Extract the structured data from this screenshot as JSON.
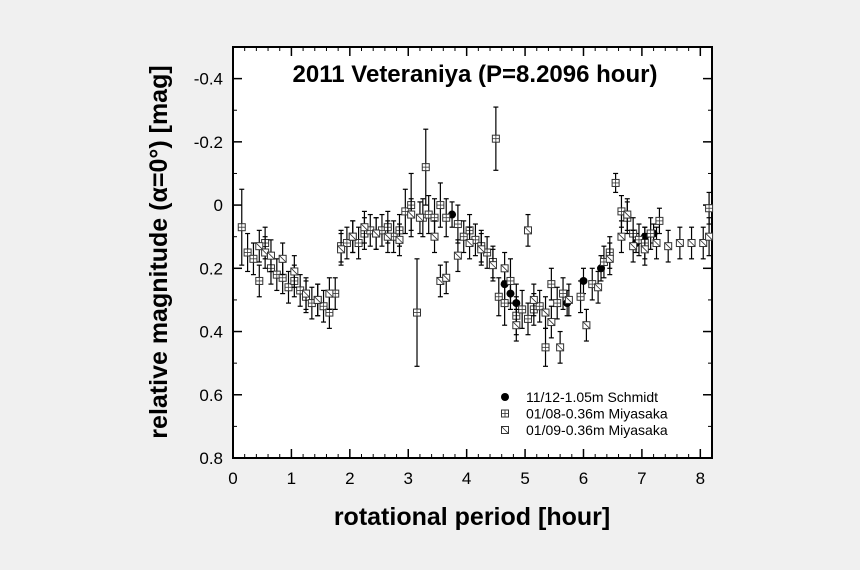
{
  "chart_data": {
    "type": "scatter",
    "title": "2011 Veteraniya  (P=8.2096 hour)",
    "xlabel": "rotational period [hour]",
    "ylabel": "relative magnitude (α=0°) [mag]",
    "xlim": [
      0,
      8.2
    ],
    "ylim": [
      0.8,
      -0.5
    ],
    "y_inverted": true,
    "xticks": [
      0,
      1,
      2,
      3,
      4,
      5,
      6,
      7,
      8
    ],
    "yticks": [
      -0.4,
      -0.2,
      0,
      0.2,
      0.4,
      0.6,
      0.8
    ],
    "ytick_labels": [
      "-0.4",
      "-0.2",
      "0",
      "0.2",
      "0.4",
      "0.6",
      "0.8"
    ],
    "grid": false,
    "legend_position": "bottom-right",
    "series": [
      {
        "name": "11/12-1.05m Schmidt",
        "marker": "filled-circle",
        "points": [
          [
            3.75,
            0.03,
            0.04
          ],
          [
            4.65,
            0.25,
            0.05
          ],
          [
            4.75,
            0.28,
            0.05
          ],
          [
            4.85,
            0.31,
            0.06
          ],
          [
            5.72,
            0.31,
            0.04
          ],
          [
            6.0,
            0.24,
            0.04
          ],
          [
            6.3,
            0.2,
            0.04
          ],
          [
            6.9,
            0.12,
            0.03
          ],
          [
            7.05,
            0.1,
            0.03
          ],
          [
            7.2,
            0.09,
            0.03
          ]
        ]
      },
      {
        "name": "01/08-0.36m Miyasaka",
        "marker": "square-plus",
        "points": [
          [
            0.15,
            0.07,
            0.12
          ],
          [
            0.25,
            0.15,
            0.06
          ],
          [
            0.35,
            0.17,
            0.05
          ],
          [
            0.45,
            0.24,
            0.05
          ],
          [
            0.55,
            0.12,
            0.05
          ],
          [
            0.65,
            0.2,
            0.05
          ],
          [
            0.75,
            0.22,
            0.05
          ],
          [
            0.85,
            0.23,
            0.05
          ],
          [
            0.95,
            0.26,
            0.05
          ],
          [
            1.05,
            0.24,
            0.05
          ],
          [
            1.15,
            0.27,
            0.05
          ],
          [
            1.25,
            0.29,
            0.05
          ],
          [
            1.35,
            0.31,
            0.05
          ],
          [
            1.45,
            0.3,
            0.05
          ],
          [
            1.55,
            0.32,
            0.05
          ],
          [
            1.65,
            0.34,
            0.05
          ],
          [
            1.75,
            0.28,
            0.05
          ],
          [
            1.85,
            0.13,
            0.05
          ],
          [
            1.95,
            0.12,
            0.05
          ],
          [
            2.05,
            0.1,
            0.05
          ],
          [
            2.15,
            0.12,
            0.05
          ],
          [
            2.25,
            0.09,
            0.05
          ],
          [
            2.35,
            0.08,
            0.05
          ],
          [
            2.45,
            0.09,
            0.05
          ],
          [
            2.55,
            0.08,
            0.05
          ],
          [
            2.65,
            0.07,
            0.05
          ],
          [
            2.75,
            0.1,
            0.05
          ],
          [
            2.85,
            0.08,
            0.05
          ],
          [
            2.95,
            0.02,
            0.07
          ],
          [
            3.05,
            0.0,
            0.1
          ],
          [
            3.15,
            0.34,
            0.17
          ],
          [
            3.25,
            0.04,
            0.06
          ],
          [
            3.3,
            -0.12,
            0.12
          ],
          [
            3.35,
            0.03,
            0.06
          ],
          [
            3.45,
            0.04,
            0.06
          ],
          [
            3.55,
            0.0,
            0.07
          ],
          [
            3.65,
            0.04,
            0.06
          ],
          [
            3.85,
            0.06,
            0.06
          ],
          [
            3.95,
            0.1,
            0.05
          ],
          [
            4.05,
            0.08,
            0.05
          ],
          [
            4.15,
            0.11,
            0.05
          ],
          [
            4.25,
            0.13,
            0.05
          ],
          [
            4.35,
            0.15,
            0.05
          ],
          [
            4.45,
            0.18,
            0.05
          ],
          [
            4.5,
            -0.21,
            0.1
          ],
          [
            4.55,
            0.29,
            0.06
          ],
          [
            4.65,
            0.31,
            0.07
          ],
          [
            4.75,
            0.24,
            0.07
          ],
          [
            4.85,
            0.35,
            0.06
          ],
          [
            4.95,
            0.33,
            0.06
          ],
          [
            5.05,
            0.36,
            0.05
          ],
          [
            5.15,
            0.33,
            0.05
          ],
          [
            5.25,
            0.32,
            0.05
          ],
          [
            5.35,
            0.45,
            0.06
          ],
          [
            5.45,
            0.25,
            0.05
          ],
          [
            5.55,
            0.31,
            0.05
          ],
          [
            5.65,
            0.28,
            0.05
          ],
          [
            5.95,
            0.29,
            0.05
          ],
          [
            6.15,
            0.25,
            0.05
          ],
          [
            6.35,
            0.18,
            0.05
          ],
          [
            6.45,
            0.15,
            0.05
          ],
          [
            6.55,
            -0.07,
            0.03
          ],
          [
            6.65,
            0.02,
            0.05
          ],
          [
            6.75,
            0.04,
            0.05
          ],
          [
            6.85,
            0.09,
            0.05
          ],
          [
            6.95,
            0.11,
            0.05
          ],
          [
            7.05,
            0.12,
            0.05
          ],
          [
            7.15,
            0.09,
            0.05
          ],
          [
            7.3,
            0.05,
            0.04
          ],
          [
            8.15,
            0.01,
            0.05
          ]
        ]
      },
      {
        "name": "01/09-0.36m Miyasaka",
        "marker": "square-slash",
        "points": [
          [
            0.45,
            0.13,
            0.05
          ],
          [
            0.55,
            0.15,
            0.05
          ],
          [
            0.65,
            0.16,
            0.05
          ],
          [
            0.85,
            0.17,
            0.05
          ],
          [
            1.05,
            0.21,
            0.05
          ],
          [
            1.25,
            0.28,
            0.05
          ],
          [
            1.45,
            0.3,
            0.05
          ],
          [
            1.65,
            0.28,
            0.05
          ],
          [
            1.85,
            0.14,
            0.05
          ],
          [
            2.05,
            0.1,
            0.05
          ],
          [
            2.25,
            0.07,
            0.05
          ],
          [
            2.45,
            0.09,
            0.05
          ],
          [
            2.65,
            0.1,
            0.05
          ],
          [
            2.85,
            0.11,
            0.05
          ],
          [
            3.05,
            0.03,
            0.05
          ],
          [
            3.2,
            0.04,
            0.05
          ],
          [
            3.45,
            0.1,
            0.05
          ],
          [
            3.55,
            0.24,
            0.05
          ],
          [
            3.65,
            0.23,
            0.05
          ],
          [
            3.85,
            0.16,
            0.05
          ],
          [
            4.05,
            0.12,
            0.05
          ],
          [
            4.25,
            0.14,
            0.05
          ],
          [
            4.45,
            0.19,
            0.05
          ],
          [
            4.65,
            0.2,
            0.05
          ],
          [
            4.85,
            0.38,
            0.05
          ],
          [
            5.05,
            0.08,
            0.05
          ],
          [
            5.15,
            0.3,
            0.05
          ],
          [
            5.35,
            0.34,
            0.05
          ],
          [
            5.45,
            0.37,
            0.05
          ],
          [
            5.6,
            0.45,
            0.05
          ],
          [
            5.75,
            0.3,
            0.05
          ],
          [
            6.05,
            0.38,
            0.05
          ],
          [
            6.25,
            0.26,
            0.05
          ],
          [
            6.45,
            0.17,
            0.05
          ],
          [
            6.65,
            0.1,
            0.05
          ],
          [
            6.75,
            0.03,
            0.05
          ],
          [
            6.85,
            0.13,
            0.05
          ],
          [
            7.05,
            0.14,
            0.05
          ],
          [
            7.25,
            0.12,
            0.05
          ],
          [
            7.45,
            0.13,
            0.05
          ],
          [
            7.65,
            0.12,
            0.05
          ],
          [
            7.85,
            0.12,
            0.05
          ],
          [
            8.05,
            0.12,
            0.05
          ],
          [
            8.15,
            0.1,
            0.06
          ]
        ]
      }
    ]
  }
}
